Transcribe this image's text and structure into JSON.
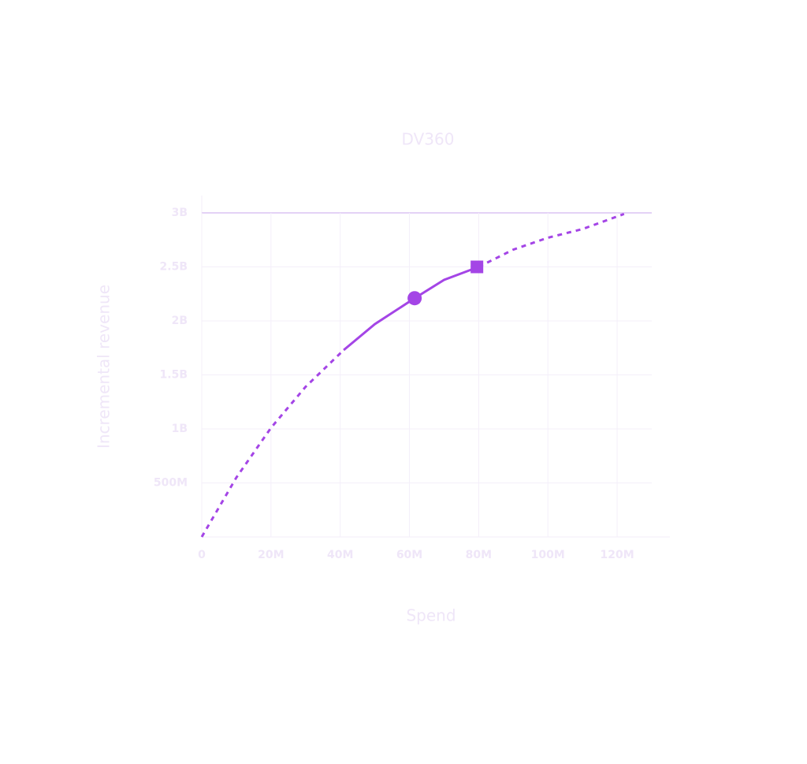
{
  "chart_data": {
    "type": "line",
    "title": "DV360",
    "x_label": "Spend",
    "y_label": "Incremental revenue",
    "xlim": [
      0,
      130000000
    ],
    "ylim": [
      0,
      3000000000
    ],
    "xticks": [
      0,
      {
        "value": 20000000,
        "label": "20M"
      },
      {
        "value": 40000000,
        "label": "40M"
      },
      {
        "value": 60000000,
        "label": "60M"
      },
      {
        "value": 80000000,
        "label": "80M"
      },
      {
        "value": 100000000,
        "label": "100M"
      },
      {
        "value": 120000000,
        "label": "120M"
      }
    ],
    "yticks": [
      {
        "value": 500000000,
        "label": "500M"
      },
      {
        "value": 1000000000,
        "label": "1B"
      },
      {
        "value": 1500000000,
        "label": "1.5B"
      },
      {
        "value": 2000000000,
        "label": "2B"
      },
      {
        "value": 2500000000,
        "label": "2.5B"
      },
      {
        "value": 3000000000,
        "label": "3B"
      }
    ],
    "grid": true,
    "series": [
      {
        "color": "#a445e6",
        "dashed": true,
        "x": [
          0,
          10000000,
          20000000,
          30000000,
          41000000
        ],
        "values": [
          0,
          550000000,
          1010000000,
          1390000000,
          1730000000
        ]
      },
      {
        "color": "#a445e6",
        "dashed": false,
        "x": [
          41000000,
          50000000,
          61500000,
          70000000,
          80000000
        ],
        "values": [
          1730000000,
          1970000000,
          2210000000,
          2380000000,
          2500000000
        ]
      },
      {
        "color": "#a445e6",
        "dashed": true,
        "x": [
          80000000,
          90000000,
          100000000,
          110000000,
          122000000
        ],
        "values": [
          2500000000,
          2660000000,
          2770000000,
          2850000000,
          2990000000
        ]
      },
      {
        "color": "#a445e6",
        "marker": "circle",
        "x": [
          61500000
        ],
        "values": [
          2210000000
        ]
      },
      {
        "color": "#a445e6",
        "marker": "square",
        "x": [
          79500000
        ],
        "values": [
          2500000000
        ]
      }
    ]
  }
}
